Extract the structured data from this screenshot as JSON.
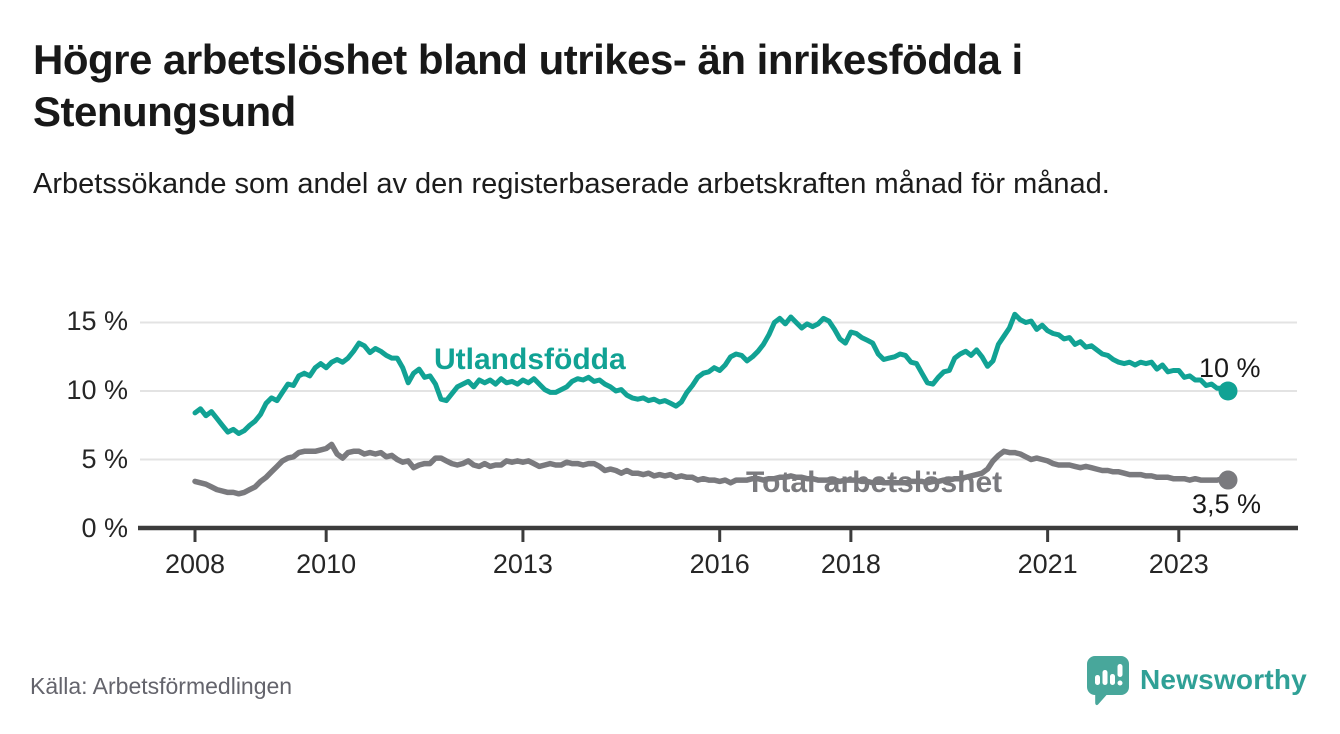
{
  "header": {
    "title": "Högre arbetslöshet bland utrikes- än inrikesfödda i Stenungsund",
    "subtitle": "Arbetssökande som andel av den registerbaserade arbetskraften månad för månad."
  },
  "chart": {
    "y_tick_labels": [
      "15 %",
      "10 %",
      "5 %",
      "0 %"
    ],
    "x_tick_labels": [
      "2008",
      "2010",
      "2013",
      "2016",
      "2018",
      "2021",
      "2023"
    ],
    "label_foreign": "Utlandsfödda",
    "label_total": "Total arbetslöshet",
    "end_label_foreign": "10 %",
    "end_label_total": "3,5 %"
  },
  "chart_data": {
    "type": "line",
    "title": "Högre arbetslöshet bland utrikes- än inrikesfödda i Stenungsund",
    "subtitle": "Arbetssökande som andel av den registerbaserade arbetskraften månad för månad.",
    "x_start": "2008-01",
    "x_end": "2023-10",
    "x_tick_years": [
      2008,
      2010,
      2013,
      2016,
      2018,
      2021,
      2023
    ],
    "ylim": [
      0,
      16
    ],
    "yticks": [
      0,
      5,
      10,
      15
    ],
    "grid": "horizontal",
    "legend_position": "inline-labels",
    "series": [
      {
        "name": "Utlandsfödda",
        "color": "#11a294",
        "end_value_label": "10 %",
        "values": [
          8.4,
          8.7,
          8.2,
          8.5,
          8.0,
          7.5,
          7.0,
          7.2,
          6.9,
          7.1,
          7.5,
          7.8,
          8.3,
          9.1,
          9.5,
          9.3,
          9.9,
          10.5,
          10.4,
          11.1,
          11.3,
          11.1,
          11.7,
          12.0,
          11.7,
          12.1,
          12.3,
          12.1,
          12.4,
          12.9,
          13.5,
          13.3,
          12.8,
          13.1,
          12.9,
          12.6,
          12.4,
          12.4,
          11.7,
          10.6,
          11.3,
          11.6,
          11.0,
          11.1,
          10.5,
          9.4,
          9.3,
          9.8,
          10.3,
          10.5,
          10.7,
          10.3,
          10.8,
          10.6,
          10.8,
          10.5,
          10.9,
          10.6,
          10.7,
          10.5,
          10.8,
          10.6,
          10.9,
          10.5,
          10.1,
          9.9,
          9.9,
          10.1,
          10.3,
          10.7,
          10.9,
          10.8,
          11.0,
          10.7,
          10.8,
          10.5,
          10.3,
          10.0,
          10.1,
          9.7,
          9.5,
          9.4,
          9.5,
          9.3,
          9.4,
          9.2,
          9.3,
          9.1,
          8.9,
          9.2,
          9.9,
          10.4,
          11.0,
          11.3,
          11.4,
          11.7,
          11.5,
          11.9,
          12.5,
          12.7,
          12.6,
          12.2,
          12.5,
          12.9,
          13.4,
          14.1,
          15.0,
          15.3,
          14.9,
          15.4,
          15.0,
          14.6,
          14.9,
          14.7,
          14.9,
          15.3,
          15.1,
          14.5,
          13.8,
          13.5,
          14.3,
          14.2,
          13.9,
          13.7,
          13.5,
          12.7,
          12.3,
          12.4,
          12.5,
          12.7,
          12.6,
          12.1,
          12.0,
          11.3,
          10.6,
          10.5,
          11.0,
          11.4,
          11.5,
          12.4,
          12.7,
          12.9,
          12.6,
          13.0,
          12.5,
          11.8,
          12.2,
          13.4,
          14.0,
          14.6,
          15.6,
          15.2,
          15.0,
          15.1,
          14.5,
          14.8,
          14.4,
          14.2,
          14.1,
          13.8,
          13.9,
          13.4,
          13.6,
          13.2,
          13.3,
          13.0,
          12.7,
          12.6,
          12.3,
          12.1,
          12.0,
          12.1,
          11.9,
          12.1,
          12.0,
          12.1,
          11.6,
          11.9,
          11.4,
          11.5,
          11.5,
          11.0,
          11.1,
          10.8,
          10.8,
          10.4,
          10.5,
          10.2,
          10.2,
          10.0
        ]
      },
      {
        "name": "Total arbetslöshet",
        "color": "#7a7a7e",
        "end_value_label": "3,5 %",
        "values": [
          3.4,
          3.3,
          3.2,
          3.0,
          2.8,
          2.7,
          2.6,
          2.6,
          2.5,
          2.6,
          2.8,
          3.0,
          3.4,
          3.7,
          4.1,
          4.5,
          4.9,
          5.1,
          5.2,
          5.5,
          5.6,
          5.6,
          5.6,
          5.7,
          5.8,
          6.1,
          5.4,
          5.1,
          5.5,
          5.6,
          5.6,
          5.4,
          5.5,
          5.4,
          5.5,
          5.2,
          5.3,
          5.0,
          4.8,
          4.9,
          4.4,
          4.6,
          4.7,
          4.7,
          5.1,
          5.1,
          4.9,
          4.7,
          4.6,
          4.7,
          4.9,
          4.6,
          4.5,
          4.7,
          4.5,
          4.6,
          4.6,
          4.9,
          4.8,
          4.9,
          4.8,
          4.9,
          4.7,
          4.5,
          4.6,
          4.7,
          4.6,
          4.6,
          4.8,
          4.7,
          4.7,
          4.6,
          4.7,
          4.7,
          4.5,
          4.2,
          4.3,
          4.2,
          4.0,
          4.2,
          4.0,
          4.0,
          3.9,
          4.0,
          3.8,
          3.9,
          3.8,
          3.9,
          3.7,
          3.8,
          3.7,
          3.7,
          3.5,
          3.6,
          3.5,
          3.5,
          3.4,
          3.5,
          3.3,
          3.5,
          3.5,
          3.5,
          3.6,
          3.6,
          3.5,
          3.6,
          3.6,
          3.7,
          3.7,
          3.8,
          3.7,
          3.7,
          3.6,
          3.6,
          3.5,
          3.5,
          3.5,
          3.5,
          3.4,
          3.5,
          3.5,
          3.5,
          3.4,
          3.4,
          3.3,
          3.4,
          3.3,
          3.3,
          3.3,
          3.3,
          3.3,
          3.4,
          3.4,
          3.4,
          3.3,
          3.4,
          3.4,
          3.5,
          3.5,
          3.6,
          3.6,
          3.7,
          3.8,
          3.9,
          4.0,
          4.3,
          4.9,
          5.3,
          5.6,
          5.5,
          5.5,
          5.4,
          5.2,
          5.0,
          5.1,
          5.0,
          4.9,
          4.7,
          4.6,
          4.6,
          4.6,
          4.5,
          4.4,
          4.5,
          4.4,
          4.3,
          4.2,
          4.2,
          4.1,
          4.1,
          4.0,
          3.9,
          3.9,
          3.9,
          3.8,
          3.8,
          3.7,
          3.7,
          3.7,
          3.6,
          3.6,
          3.6,
          3.5,
          3.6,
          3.5,
          3.5,
          3.5,
          3.5,
          3.6,
          3.5
        ]
      }
    ]
  },
  "footer": {
    "source": "Källa: Arbetsförmedlingen",
    "brand": "Newsworthy"
  },
  "colors": {
    "accent_teal": "#11a294",
    "line_gray": "#7a7a7e",
    "grid": "#e3e3e3",
    "axis": "#3c3c3c",
    "logo_teal": "#48a79b"
  }
}
